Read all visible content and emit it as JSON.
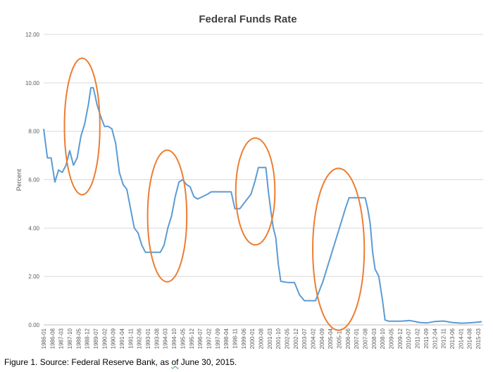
{
  "caption": {
    "prefix": "Figure 1. Source: Federal Reserve Bank, as ",
    "underlined": "of",
    "suffix": " June 30, 2015."
  },
  "colors": {
    "line": "#5b9bd5",
    "ellipse": "#ed7d31",
    "grid": "#d9d9d9",
    "text": "#595959",
    "title": "#404040"
  },
  "chart_data": {
    "type": "line",
    "title": "Federal Funds Rate",
    "ylabel": "Percent",
    "xlabel": "",
    "ylim": [
      0,
      12
    ],
    "yticks": [
      "0.00",
      "2.00",
      "4.00",
      "6.00",
      "8.00",
      "10.00",
      "12.00"
    ],
    "grid": true,
    "legend": "none",
    "xtick_labels": [
      "1986-01",
      "1986-08",
      "1987-03",
      "1987-10",
      "1988-05",
      "1988-12",
      "1989-07",
      "1990-02",
      "1990-09",
      "1991-04",
      "1991-11",
      "1992-06",
      "1993-01",
      "1993-08",
      "1994-03",
      "1994-10",
      "1995-05",
      "1995-12",
      "1996-07",
      "1997-02",
      "1997-09",
      "1998-04",
      "1998-11",
      "1999-06",
      "2000-01",
      "2000-08",
      "2001-03",
      "2001-10",
      "2002-05",
      "2002-12",
      "2003-07",
      "2004-02",
      "2004-09",
      "2005-04",
      "2005-11",
      "2006-06",
      "2007-01",
      "2007-08",
      "2008-03",
      "2008-10",
      "2009-05",
      "2009-12",
      "2010-07",
      "2011-02",
      "2011-09",
      "2012-04",
      "2012-11",
      "2013-06",
      "2014-01",
      "2014-08",
      "2015-03"
    ],
    "series": [
      {
        "x": [
          "1986-01",
          "1986-04",
          "1986-07",
          "1986-10",
          "1987-01",
          "1987-04",
          "1987-07",
          "1987-10",
          "1988-01",
          "1988-04",
          "1988-07",
          "1988-10",
          "1989-01",
          "1989-03",
          "1989-05",
          "1989-08",
          "1989-11",
          "1990-02",
          "1990-05",
          "1990-08",
          "1990-11",
          "1991-02",
          "1991-05",
          "1991-08",
          "1991-11",
          "1992-02",
          "1992-05",
          "1992-08",
          "1992-11",
          "1993-03",
          "1993-07",
          "1993-11",
          "1994-02",
          "1994-05",
          "1994-08",
          "1994-11",
          "1995-02",
          "1995-05",
          "1995-08",
          "1995-11",
          "1996-02",
          "1996-05",
          "1996-09",
          "1997-01",
          "1997-04",
          "1997-08",
          "1997-12",
          "1998-04",
          "1998-08",
          "1998-11",
          "1999-03",
          "1999-06",
          "1999-09",
          "1999-12",
          "2000-03",
          "2000-06",
          "2000-09",
          "2000-12",
          "2001-02",
          "2001-04",
          "2001-06",
          "2001-08",
          "2001-10",
          "2001-12",
          "2002-06",
          "2002-11",
          "2003-03",
          "2003-07",
          "2003-11",
          "2004-04",
          "2004-07",
          "2004-10",
          "2005-01",
          "2005-04",
          "2005-07",
          "2005-10",
          "2006-01",
          "2006-04",
          "2006-07",
          "2006-10",
          "2007-03",
          "2007-08",
          "2007-10",
          "2007-12",
          "2008-02",
          "2008-04",
          "2008-07",
          "2008-10",
          "2008-12",
          "2009-03",
          "2009-08",
          "2010-01",
          "2010-08",
          "2011-04",
          "2011-10",
          "2012-04",
          "2012-11",
          "2013-06",
          "2014-02",
          "2014-10",
          "2015-06"
        ],
        "values": [
          8.1,
          6.9,
          6.9,
          5.9,
          6.4,
          6.3,
          6.6,
          7.2,
          6.6,
          6.9,
          7.8,
          8.3,
          9.1,
          9.8,
          9.8,
          9.1,
          8.6,
          8.2,
          8.2,
          8.1,
          7.5,
          6.3,
          5.8,
          5.6,
          4.8,
          4.0,
          3.8,
          3.3,
          3.0,
          3.0,
          3.0,
          3.0,
          3.3,
          4.0,
          4.5,
          5.3,
          5.9,
          6.0,
          5.8,
          5.7,
          5.3,
          5.2,
          5.3,
          5.4,
          5.5,
          5.5,
          5.5,
          5.5,
          5.5,
          4.8,
          4.8,
          5.0,
          5.2,
          5.4,
          5.9,
          6.5,
          6.5,
          6.5,
          5.5,
          4.7,
          4.0,
          3.6,
          2.5,
          1.8,
          1.75,
          1.75,
          1.25,
          1.0,
          1.0,
          1.0,
          1.4,
          1.8,
          2.3,
          2.8,
          3.3,
          3.8,
          4.3,
          4.8,
          5.25,
          5.25,
          5.25,
          5.25,
          4.8,
          4.2,
          3.0,
          2.3,
          2.0,
          1.0,
          0.2,
          0.15,
          0.15,
          0.15,
          0.18,
          0.1,
          0.08,
          0.14,
          0.16,
          0.1,
          0.07,
          0.09,
          0.13
        ]
      }
    ],
    "annotations": [
      {
        "type": "ellipse",
        "from": "1987-08",
        "to": "1989-08"
      },
      {
        "type": "ellipse",
        "from": "1993-03",
        "to": "1995-06"
      },
      {
        "type": "ellipse",
        "from": "1999-02",
        "to": "2001-05"
      },
      {
        "type": "ellipse",
        "from": "2004-04",
        "to": "2007-05"
      }
    ]
  }
}
